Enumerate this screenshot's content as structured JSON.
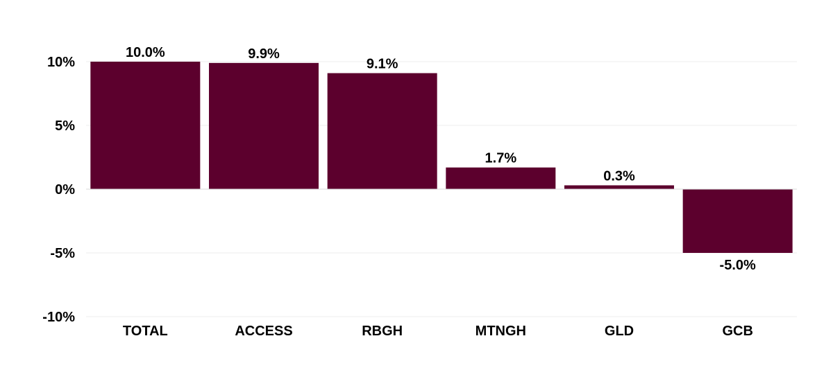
{
  "chart_data": {
    "type": "bar",
    "categories": [
      "TOTAL",
      "ACCESS",
      "RBGH",
      "MTNGH",
      "GLD",
      "GCB"
    ],
    "values": [
      10.0,
      9.9,
      9.1,
      1.7,
      0.3,
      -5.0
    ],
    "data_labels": [
      "10.0%",
      "9.9%",
      "9.1%",
      "1.7%",
      "0.3%",
      "-5.0%"
    ],
    "title": "",
    "xlabel": "",
    "ylabel": "",
    "ylim": [
      -10,
      10
    ],
    "y_ticks": [
      10,
      5,
      0,
      -5,
      -10
    ],
    "y_tick_labels": [
      "10%",
      "5%",
      "0%",
      "-5%",
      "-10%"
    ],
    "grid": true,
    "legend": "none",
    "colors": {
      "bar": "#5c002d",
      "grid": "#eeeeee",
      "axis": "#d9d9d9",
      "text": "#000000"
    }
  }
}
